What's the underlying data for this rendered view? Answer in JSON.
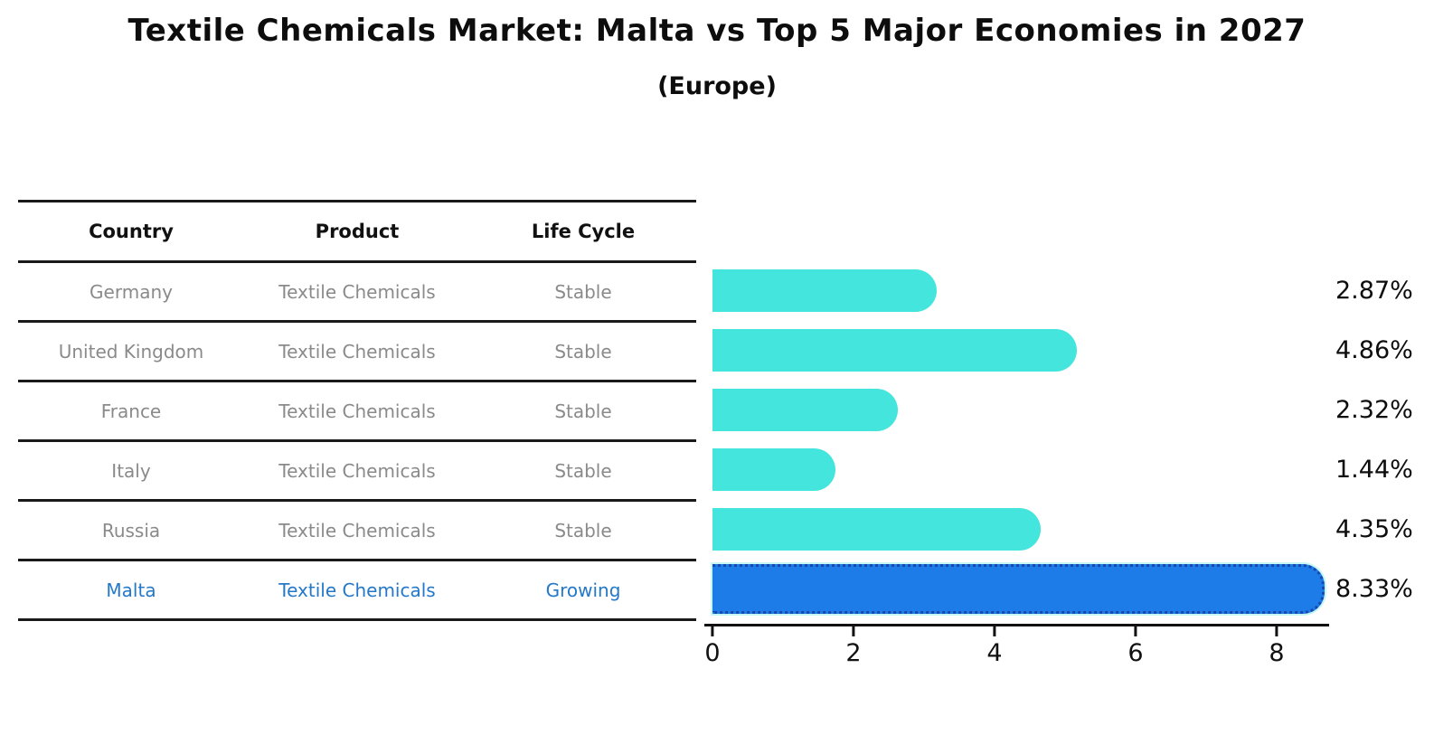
{
  "title": "Textile Chemicals Market: Malta vs Top 5 Major Economies in 2027",
  "subtitle": "(Europe)",
  "table": {
    "headers": [
      "Country",
      "Product",
      "Life Cycle"
    ],
    "rows": [
      {
        "country": "Germany",
        "product": "Textile Chemicals",
        "life_cycle": "Stable",
        "highlight": false
      },
      {
        "country": "United Kingdom",
        "product": "Textile Chemicals",
        "life_cycle": "Stable",
        "highlight": false
      },
      {
        "country": "France",
        "product": "Textile Chemicals",
        "life_cycle": "Stable",
        "highlight": false
      },
      {
        "country": "Italy",
        "product": "Textile Chemicals",
        "life_cycle": "Stable",
        "highlight": false
      },
      {
        "country": "Russia",
        "product": "Textile Chemicals",
        "life_cycle": "Stable",
        "highlight": false
      },
      {
        "country": "Malta",
        "product": "Textile Chemicals",
        "life_cycle": "Growing",
        "highlight": true
      }
    ]
  },
  "chart_data": {
    "type": "bar",
    "orientation": "horizontal",
    "categories": [
      "Germany",
      "United Kingdom",
      "France",
      "Italy",
      "Russia",
      "Malta"
    ],
    "values": [
      2.87,
      4.86,
      2.32,
      1.44,
      4.35,
      8.33
    ],
    "value_labels": [
      "2.87%",
      "4.86%",
      "2.32%",
      "1.44%",
      "4.35%",
      "8.33%"
    ],
    "x_ticks": [
      0,
      2,
      4,
      6,
      8
    ],
    "xlim": [
      0,
      8.75
    ],
    "grid": false,
    "legend": false,
    "bar_color": "#44e5dc",
    "highlight_color": "#1e7ce8",
    "highlight_index": 5,
    "title": "Textile Chemicals Market: Malta vs Top 5 Major Economies in 2027",
    "subtitle": "(Europe)",
    "xlabel": "",
    "ylabel": ""
  },
  "colors": {
    "bar_cyan": "#44e5dc",
    "bar_blue": "#1e7ce8",
    "bar_blue_edge": "#1847ae",
    "row_text_gray": "#8a8a8a",
    "highlight_text_blue": "#2478c8",
    "line_black": "#1a1a1a"
  }
}
